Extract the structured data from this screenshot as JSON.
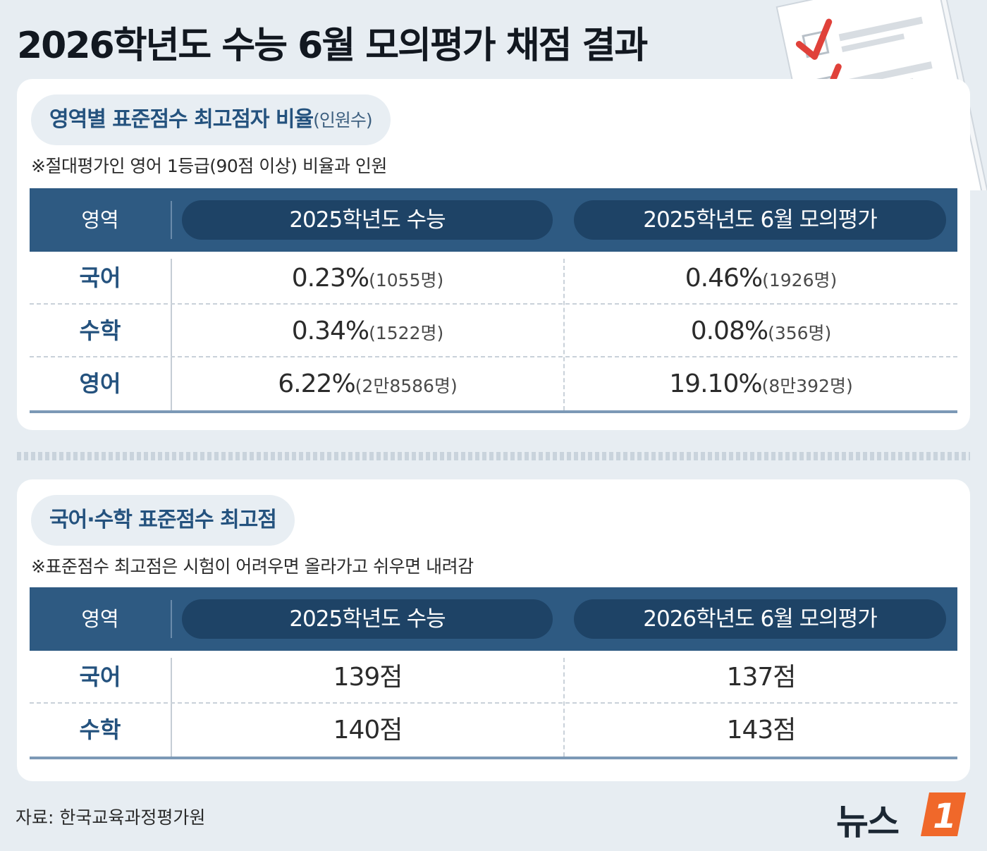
{
  "title": "2026학년도 수능 6월 모의평가 채점 결과",
  "section1": {
    "heading": "영역별 표준점수 최고점자 비율",
    "heading_suffix": "(인원수)",
    "note": "※절대평가인 영어 1등급(90점 이상) 비율과 인원",
    "columns": [
      "영역",
      "2025학년도  수능",
      "2025학년도 6월 모의평가"
    ],
    "rows": [
      {
        "subject": "국어",
        "v1": "0.23%",
        "c1": "(1055명)",
        "v2": "0.46%",
        "c2": "(1926명)"
      },
      {
        "subject": "수학",
        "v1": "0.34%",
        "c1": "(1522명)",
        "v2": "0.08%",
        "c2": "(356명)"
      },
      {
        "subject": "영어",
        "v1": "6.22%",
        "c1": "(2만8586명)",
        "v2": "19.10%",
        "c2": "(8만392명)"
      }
    ]
  },
  "section2": {
    "heading": "국어·수학 표준점수 최고점",
    "note": "※표준점수 최고점은 시험이 어려우면 올라가고 쉬우면 내려감",
    "columns": [
      "영역",
      "2025학년도  수능",
      "2026학년도 6월 모의평가"
    ],
    "rows": [
      {
        "subject": "국어",
        "v1": "139점",
        "v2": "137점"
      },
      {
        "subject": "수학",
        "v1": "140점",
        "v2": "143점"
      }
    ]
  },
  "source": "자료: 한국교육과정평가원",
  "logo": {
    "text": "뉴스",
    "badge": "1"
  },
  "colors": {
    "header": "#2e5a82",
    "header_pill": "#1e4366",
    "accent_text": "#24527e",
    "check": "#e0413a",
    "logo_orange": "#f0682a"
  }
}
